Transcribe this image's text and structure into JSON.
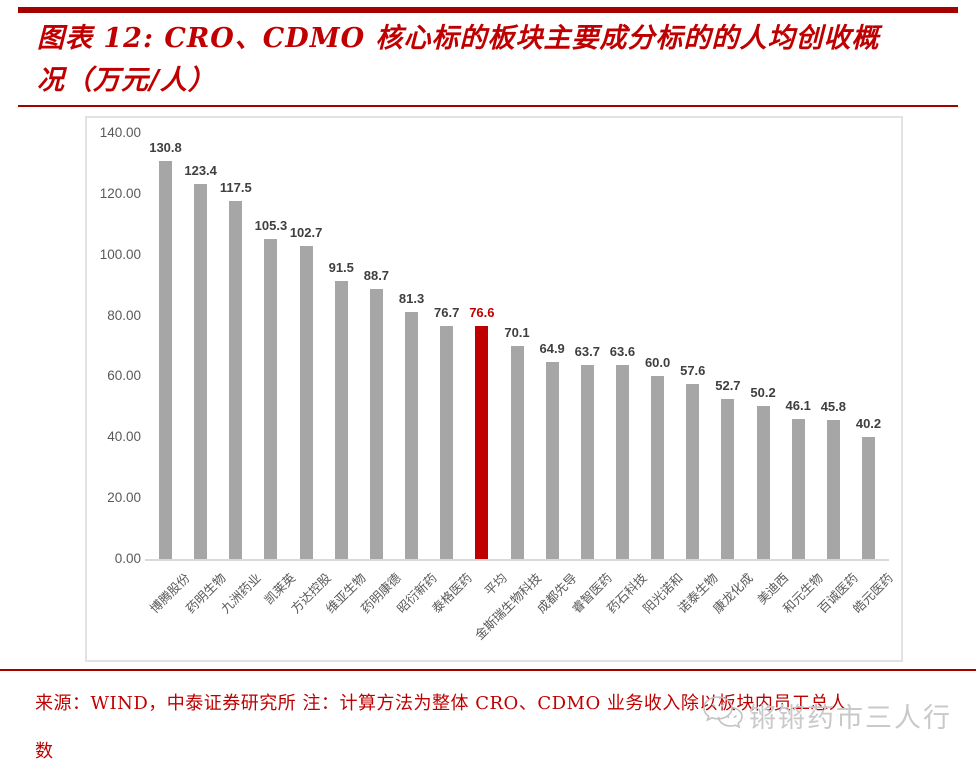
{
  "header": {
    "title_line1": "图表 12: CRO、CDMO 核心标的板块主要成分标的的人均创收概",
    "title_line2": "况（万元/人）"
  },
  "chart_data": {
    "type": "bar",
    "title": "CRO、CDMO 核心标的板块主要成分标的的人均创收概况",
    "unit": "万元/人",
    "categories": [
      "博腾股份",
      "药明生物",
      "九洲药业",
      "凯莱英",
      "方达控股",
      "维亚生物",
      "药明康德",
      "昭衍新药",
      "泰格医药",
      "平均",
      "金斯瑞生物科技",
      "成都先导",
      "睿智医药",
      "药石科技",
      "阳光诺和",
      "诺泰生物",
      "康龙化成",
      "美迪西",
      "和元生物",
      "百诚医药",
      "皓元医药"
    ],
    "values": [
      130.8,
      123.4,
      117.5,
      105.3,
      102.7,
      91.5,
      88.7,
      81.3,
      76.7,
      76.6,
      70.1,
      64.9,
      63.7,
      63.6,
      60.0,
      57.6,
      52.7,
      50.2,
      46.1,
      45.8,
      40.2
    ],
    "highlight_index": 9,
    "highlight_category": "平均",
    "ylim": [
      0,
      140
    ],
    "ytick_step": 20,
    "ytick_labels": [
      "0.00",
      "20.00",
      "40.00",
      "60.00",
      "80.00",
      "100.00",
      "120.00",
      "140.00"
    ],
    "grid": false,
    "legend": false,
    "colors": {
      "bar": "#a6a6a6",
      "highlight_bar": "#c00000",
      "value_label": "#3f3f3f",
      "highlight_value_label": "#c00000",
      "axis_text": "#595959"
    }
  },
  "footer": {
    "source_line1": "来源：WIND，中泰证券研究所 注：计算方法为整体 CRO、CDMO 业务收入除以板块内员工总人",
    "source_line2": "数",
    "watermark_text": "锵锵药市三人行",
    "watermark_icon": "wechat-icon"
  }
}
